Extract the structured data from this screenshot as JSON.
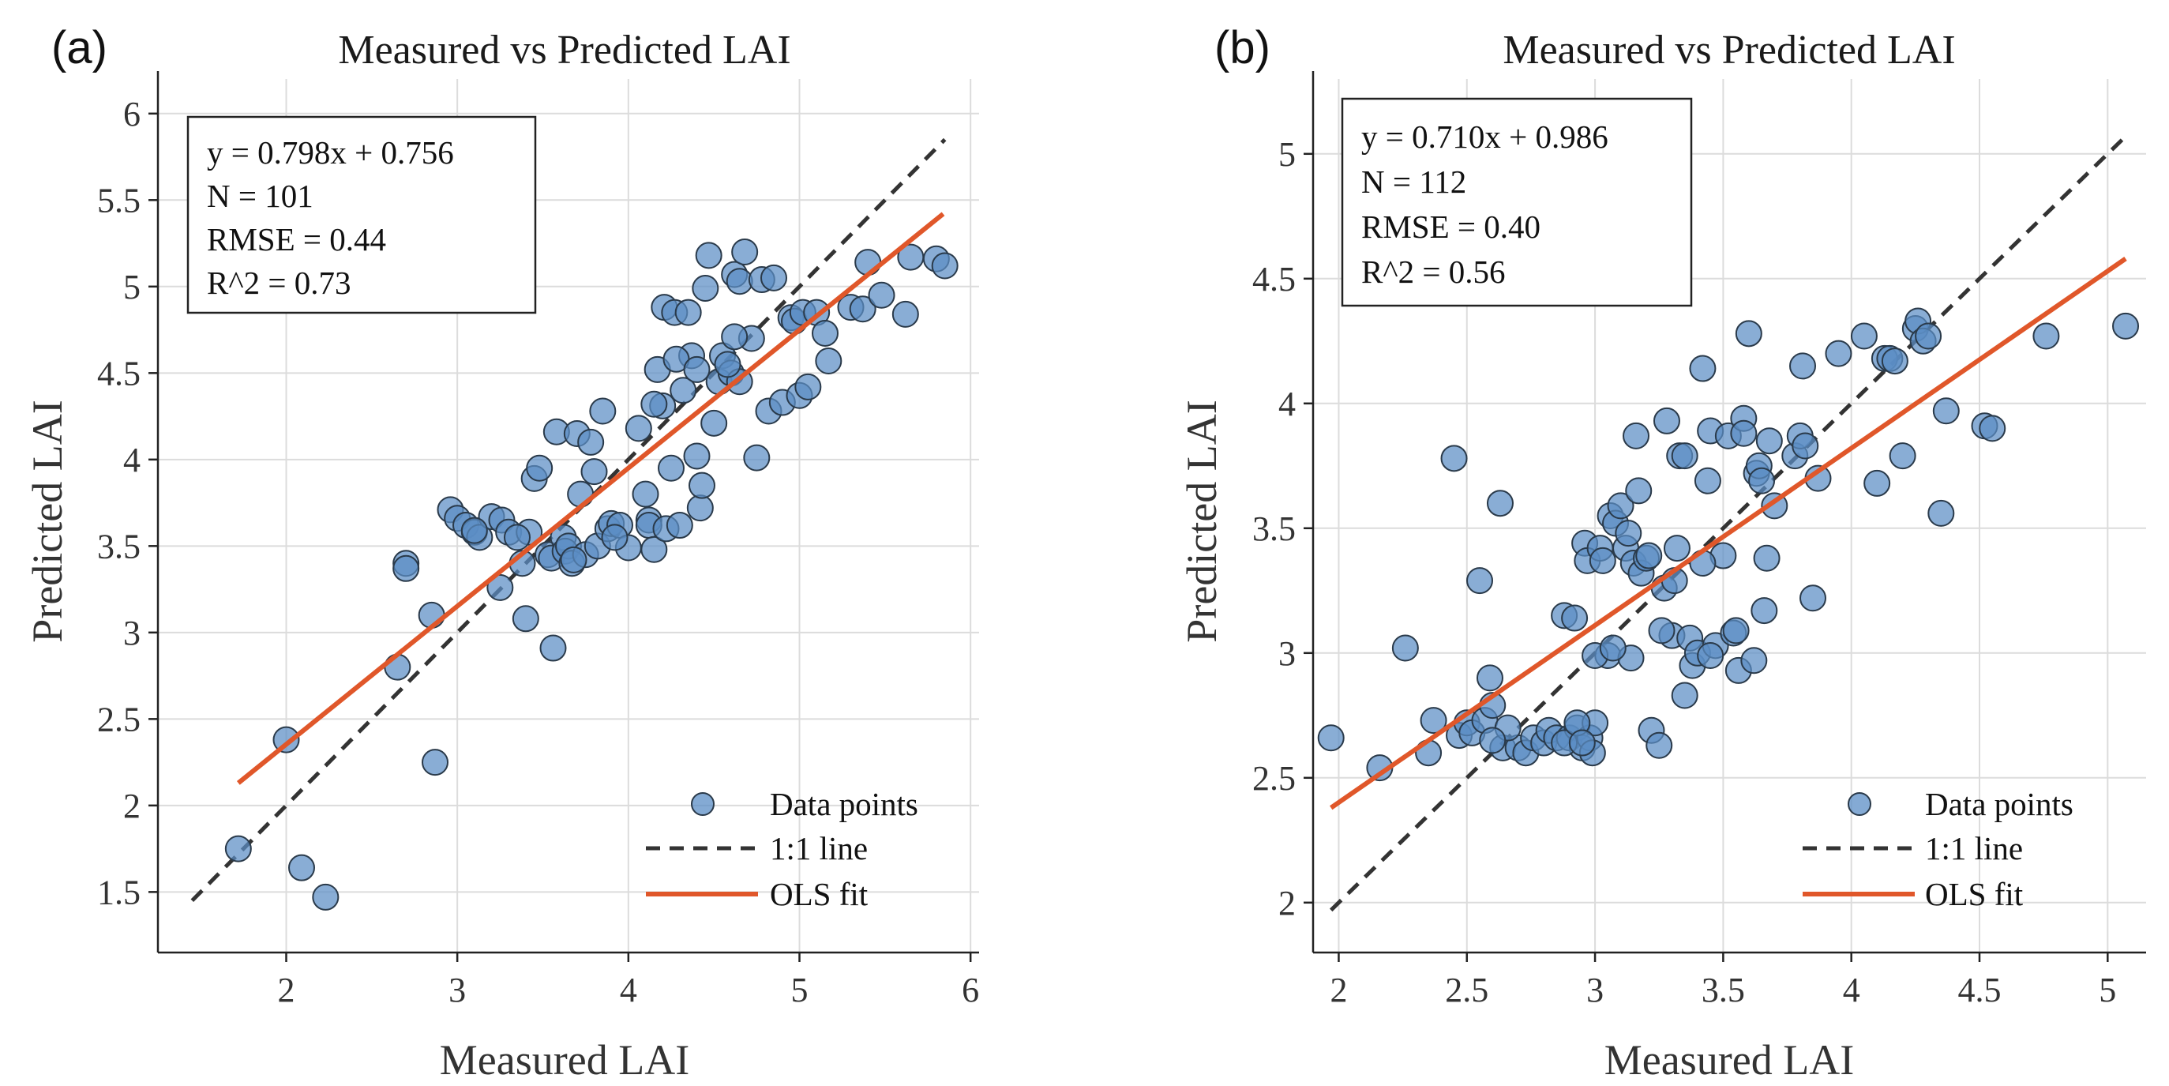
{
  "chart_data": [
    {
      "type": "scatter",
      "panel_label": "(a)",
      "title": "Measured vs Predicted LAI",
      "xlabel": "Measured LAI",
      "ylabel": "Predicted LAI",
      "xlim": [
        1.25,
        6.05
      ],
      "ylim": [
        1.15,
        6.2
      ],
      "xticks": [
        2,
        3,
        4,
        5,
        6
      ],
      "xtick_labels": [
        "2",
        "3",
        "4",
        "5",
        "6"
      ],
      "yticks": [
        1.5,
        2,
        2.5,
        3,
        3.5,
        4,
        4.5,
        5,
        5.5,
        6
      ],
      "ytick_labels": [
        "1.5",
        "2",
        "2.5",
        "3",
        "3.5",
        "4",
        "4.5",
        "5",
        "5.5",
        "6"
      ],
      "grid": true,
      "stats_box": [
        "y = 0.798x + 0.756",
        "N = 101",
        "RMSE = 0.44",
        "R^2 = 0.73"
      ],
      "legend": {
        "position": "bottom-right",
        "entries": [
          "Data points",
          "1:1 line",
          "OLS fit"
        ]
      },
      "colors": {
        "points": "#5b8ec5",
        "point_edge": "#2a3a4a",
        "identity": "#333333",
        "fit": "#e0572a"
      },
      "identity_line": [
        [
          1.45,
          1.45
        ],
        [
          5.85,
          5.85
        ]
      ],
      "fit_line": [
        [
          1.72,
          2.13
        ],
        [
          5.84,
          5.42
        ]
      ],
      "x": [
        1.72,
        2.0,
        2.09,
        2.23,
        2.65,
        2.7,
        2.7,
        2.85,
        2.87,
        2.96,
        3.0,
        3.05,
        3.1,
        3.13,
        3.2,
        3.25,
        3.26,
        3.3,
        3.38,
        3.4,
        3.42,
        3.45,
        3.48,
        3.53,
        3.55,
        3.56,
        3.58,
        3.62,
        3.63,
        3.65,
        3.67,
        3.7,
        3.72,
        3.75,
        3.78,
        3.8,
        3.82,
        3.85,
        3.88,
        3.9,
        3.95,
        4.0,
        4.06,
        4.1,
        4.12,
        4.12,
        4.15,
        4.17,
        4.2,
        4.21,
        4.22,
        4.25,
        4.27,
        4.3,
        4.32,
        4.35,
        4.37,
        4.4,
        4.42,
        4.43,
        4.45,
        4.47,
        4.5,
        4.53,
        4.55,
        4.6,
        4.62,
        4.65,
        4.65,
        4.68,
        4.72,
        4.78,
        4.82,
        4.85,
        4.9,
        4.95,
        4.97,
        5.0,
        5.02,
        5.05,
        5.1,
        5.15,
        5.17,
        5.3,
        5.37,
        5.4,
        5.48,
        5.62,
        5.65,
        5.8,
        5.85,
        4.58,
        4.62,
        4.75,
        3.35,
        4.15,
        4.28,
        4.4,
        3.1,
        3.68,
        3.92
      ],
      "y": [
        1.75,
        2.38,
        1.64,
        1.47,
        2.8,
        3.4,
        3.37,
        3.1,
        2.25,
        3.71,
        3.66,
        3.62,
        3.58,
        3.55,
        3.67,
        3.26,
        3.65,
        3.58,
        3.4,
        3.08,
        3.58,
        3.89,
        3.95,
        3.45,
        3.43,
        2.91,
        4.16,
        3.55,
        3.47,
        3.5,
        3.4,
        4.15,
        3.8,
        3.45,
        4.1,
        3.93,
        3.5,
        4.28,
        3.6,
        3.63,
        3.62,
        3.49,
        4.18,
        3.8,
        3.65,
        3.62,
        3.48,
        4.52,
        4.31,
        4.88,
        3.6,
        3.95,
        4.85,
        3.62,
        4.4,
        4.85,
        4.6,
        4.02,
        3.72,
        3.85,
        4.99,
        5.18,
        4.21,
        4.45,
        4.6,
        4.5,
        5.07,
        4.45,
        5.03,
        5.2,
        4.7,
        5.04,
        4.28,
        5.05,
        4.33,
        4.82,
        4.8,
        4.37,
        4.85,
        4.42,
        4.85,
        4.73,
        4.57,
        4.88,
        4.87,
        5.14,
        4.95,
        4.84,
        5.17,
        5.16,
        5.12,
        4.55,
        4.71,
        4.01,
        3.55,
        4.32,
        4.58,
        4.52,
        3.59,
        3.42,
        3.55
      ]
    },
    {
      "type": "scatter",
      "panel_label": "(b)",
      "title": "Measured vs Predicted LAI",
      "xlabel": "Measured LAI",
      "ylabel": "Predicted LAI",
      "xlim": [
        1.9,
        5.15
      ],
      "ylim": [
        1.8,
        5.3
      ],
      "xticks": [
        2,
        2.5,
        3,
        3.5,
        4,
        4.5,
        5
      ],
      "xtick_labels": [
        "2",
        "2.5",
        "3",
        "3.5",
        "4",
        "4.5",
        "5"
      ],
      "yticks": [
        2,
        2.5,
        3,
        3.5,
        4,
        4.5,
        5
      ],
      "ytick_labels": [
        "2",
        "2.5",
        "3",
        "3.5",
        "4",
        "4.5",
        "5"
      ],
      "grid": true,
      "stats_box": [
        "y = 0.710x + 0.986",
        "N = 112",
        "RMSE = 0.40",
        "R^2 = 0.56"
      ],
      "legend": {
        "position": "bottom-right",
        "entries": [
          "Data points",
          "1:1 line",
          "OLS fit"
        ]
      },
      "colors": {
        "points": "#5b8ec5",
        "point_edge": "#2a3a4a",
        "identity": "#333333",
        "fit": "#e0572a"
      },
      "identity_line": [
        [
          1.97,
          1.97
        ],
        [
          5.07,
          5.07
        ]
      ],
      "fit_line": [
        [
          1.97,
          2.38
        ],
        [
          5.07,
          4.58
        ]
      ],
      "x": [
        1.97,
        2.16,
        2.26,
        2.35,
        2.37,
        2.45,
        2.47,
        2.5,
        2.52,
        2.55,
        2.57,
        2.59,
        2.6,
        2.63,
        2.64,
        2.7,
        2.73,
        2.76,
        2.8,
        2.82,
        2.85,
        2.88,
        2.9,
        2.92,
        2.93,
        2.95,
        2.96,
        2.97,
        2.98,
        2.99,
        3.0,
        3.02,
        3.03,
        3.05,
        3.06,
        3.08,
        3.1,
        3.12,
        3.13,
        3.15,
        3.16,
        3.17,
        3.18,
        3.2,
        3.22,
        3.25,
        3.27,
        3.28,
        3.3,
        3.31,
        3.32,
        3.33,
        3.35,
        3.37,
        3.38,
        3.4,
        3.42,
        3.44,
        3.45,
        3.47,
        3.5,
        3.52,
        3.54,
        3.55,
        3.56,
        3.58,
        3.6,
        3.62,
        3.63,
        3.64,
        3.65,
        3.66,
        3.67,
        3.68,
        3.7,
        3.78,
        3.8,
        3.81,
        3.82,
        3.85,
        3.87,
        3.95,
        4.05,
        4.1,
        4.13,
        4.15,
        4.17,
        4.2,
        4.25,
        4.26,
        4.28,
        4.3,
        4.35,
        4.37,
        4.52,
        4.55,
        4.76,
        5.07,
        2.88,
        2.93,
        3.0,
        3.14,
        3.35,
        3.45,
        3.07,
        3.26,
        3.58,
        2.66,
        2.95,
        3.21,
        2.6,
        3.42
      ],
      "y": [
        2.66,
        2.54,
        3.02,
        2.6,
        2.73,
        3.78,
        2.67,
        2.72,
        2.68,
        3.29,
        2.73,
        2.9,
        2.79,
        3.6,
        2.62,
        2.62,
        2.6,
        2.66,
        2.64,
        2.69,
        2.66,
        3.15,
        2.66,
        3.14,
        2.7,
        2.62,
        3.44,
        3.37,
        2.66,
        2.6,
        2.72,
        3.42,
        3.37,
        2.99,
        3.55,
        3.52,
        3.59,
        3.42,
        3.48,
        3.36,
        3.87,
        3.65,
        3.32,
        3.38,
        2.69,
        2.63,
        3.26,
        3.93,
        3.07,
        3.29,
        3.42,
        3.79,
        3.79,
        3.06,
        2.95,
        3.0,
        4.14,
        3.69,
        3.89,
        3.03,
        3.39,
        3.87,
        3.08,
        3.09,
        2.93,
        3.94,
        4.28,
        2.97,
        3.72,
        3.75,
        3.69,
        3.17,
        3.38,
        3.85,
        3.59,
        3.79,
        3.87,
        4.15,
        3.83,
        3.22,
        3.7,
        4.2,
        4.27,
        3.68,
        4.18,
        4.18,
        4.17,
        3.79,
        4.3,
        4.33,
        4.25,
        4.27,
        3.56,
        3.97,
        3.91,
        3.9,
        4.27,
        4.31,
        2.64,
        2.72,
        2.99,
        2.98,
        2.83,
        2.99,
        3.02,
        3.09,
        3.88,
        2.7,
        2.64,
        3.39,
        2.65,
        3.36
      ]
    }
  ]
}
